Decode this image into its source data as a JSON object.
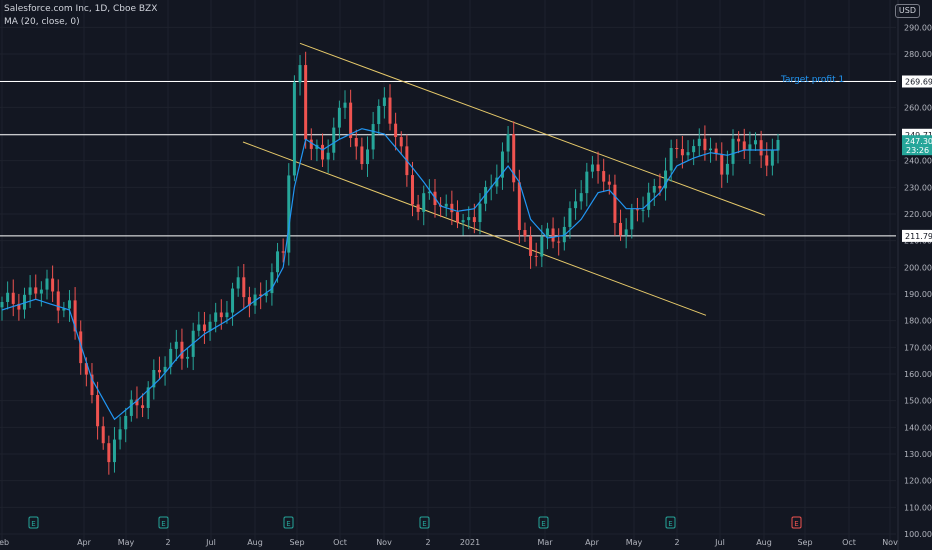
{
  "legend": {
    "title": "Salesforce.com Inc, 1D, Cboe BZX",
    "ma": "MA (20, close, 0)"
  },
  "currency_button": "USD",
  "annotation": "Target profit 1",
  "colors": {
    "background": "#131722",
    "grid": "#1e222d",
    "up": "#26a69a",
    "down": "#ef5350",
    "ma_line": "#2196f3",
    "channel": "#e6c96a",
    "level_line": "#ffffff",
    "axis_text": "#b2b5be",
    "earnings_icon": "#26a69a",
    "earnings_icon_future": "#ef5350"
  },
  "chart_data": {
    "type": "candlestick",
    "title": "Salesforce.com Inc, 1D, Cboe BZX",
    "ylim": [
      100,
      295
    ],
    "y_ticks": [
      100,
      110,
      120,
      130,
      140,
      150,
      160,
      170,
      180,
      190,
      200,
      210,
      220,
      230,
      240,
      250,
      260,
      270,
      280,
      290
    ],
    "x_ticks": [
      "Feb",
      "Apr",
      "May",
      "2",
      "Jul",
      "Aug",
      "Sep",
      "Oct",
      "Nov",
      "2",
      "2021",
      "Mar",
      "Apr",
      "May",
      "2",
      "Jul",
      "Aug",
      "Sep",
      "Oct",
      "Nov"
    ],
    "horizontal_levels": [
      269.69,
      249.71,
      211.79
    ],
    "last_price": 247.3,
    "countdown": "23:26",
    "earnings_markers": [
      "E",
      "E",
      "E",
      "E",
      "E",
      "E",
      "E"
    ],
    "price_path": [
      [
        0,
        185
      ],
      [
        4,
        190
      ],
      [
        8,
        192
      ],
      [
        12,
        185
      ],
      [
        14,
        165
      ],
      [
        16,
        150
      ],
      [
        18,
        138
      ],
      [
        19,
        125
      ],
      [
        21,
        140
      ],
      [
        23,
        148
      ],
      [
        25,
        152
      ],
      [
        28,
        160
      ],
      [
        31,
        172
      ],
      [
        33,
        168
      ],
      [
        35,
        176
      ],
      [
        37,
        180
      ],
      [
        40,
        186
      ],
      [
        42,
        192
      ],
      [
        44,
        188
      ],
      [
        46,
        190
      ],
      [
        48,
        197
      ],
      [
        50,
        205
      ],
      [
        51,
        238
      ],
      [
        52,
        270
      ],
      [
        53,
        275
      ],
      [
        54,
        250
      ],
      [
        55,
        245
      ],
      [
        57,
        238
      ],
      [
        59,
        255
      ],
      [
        61,
        262
      ],
      [
        62,
        250
      ],
      [
        64,
        235
      ],
      [
        66,
        258
      ],
      [
        68,
        262
      ],
      [
        70,
        248
      ],
      [
        72,
        235
      ],
      [
        74,
        222
      ],
      [
        76,
        228
      ],
      [
        78,
        220
      ],
      [
        80,
        225
      ],
      [
        82,
        215
      ],
      [
        84,
        218
      ],
      [
        86,
        228
      ],
      [
        88,
        238
      ],
      [
        90,
        246
      ],
      [
        91,
        232
      ],
      [
        92,
        215
      ],
      [
        94,
        205
      ],
      [
        96,
        212
      ],
      [
        98,
        208
      ],
      [
        100,
        215
      ],
      [
        102,
        228
      ],
      [
        104,
        232
      ],
      [
        106,
        238
      ],
      [
        108,
        230
      ],
      [
        109,
        218
      ],
      [
        111,
        212
      ],
      [
        113,
        222
      ],
      [
        115,
        228
      ],
      [
        117,
        232
      ],
      [
        119,
        240
      ],
      [
        121,
        246
      ],
      [
        123,
        244
      ],
      [
        124,
        249
      ],
      [
        126,
        241
      ],
      [
        128,
        238
      ],
      [
        130,
        247
      ],
      [
        132,
        245
      ],
      [
        134,
        244
      ],
      [
        136,
        243
      ],
      [
        138,
        245
      ]
    ],
    "ma_path": [
      [
        0,
        184
      ],
      [
        6,
        188
      ],
      [
        12,
        184
      ],
      [
        16,
        158
      ],
      [
        20,
        143
      ],
      [
        24,
        150
      ],
      [
        28,
        158
      ],
      [
        32,
        168
      ],
      [
        36,
        175
      ],
      [
        40,
        180
      ],
      [
        44,
        186
      ],
      [
        48,
        192
      ],
      [
        50,
        200
      ],
      [
        52,
        230
      ],
      [
        54,
        248
      ],
      [
        57,
        244
      ],
      [
        60,
        248
      ],
      [
        64,
        252
      ],
      [
        68,
        250
      ],
      [
        72,
        240
      ],
      [
        75,
        232
      ],
      [
        78,
        223
      ],
      [
        81,
        221
      ],
      [
        84,
        222
      ],
      [
        87,
        230
      ],
      [
        90,
        238
      ],
      [
        92,
        232
      ],
      [
        94,
        218
      ],
      [
        97,
        211
      ],
      [
        100,
        212
      ],
      [
        103,
        218
      ],
      [
        106,
        228
      ],
      [
        108,
        229
      ],
      [
        111,
        222
      ],
      [
        114,
        222
      ],
      [
        117,
        228
      ],
      [
        120,
        238
      ],
      [
        123,
        241
      ],
      [
        126,
        243
      ],
      [
        129,
        242
      ],
      [
        132,
        244
      ],
      [
        135,
        244
      ],
      [
        138,
        244
      ]
    ],
    "series": [
      {
        "name": "MA (20, close, 0)"
      }
    ]
  }
}
